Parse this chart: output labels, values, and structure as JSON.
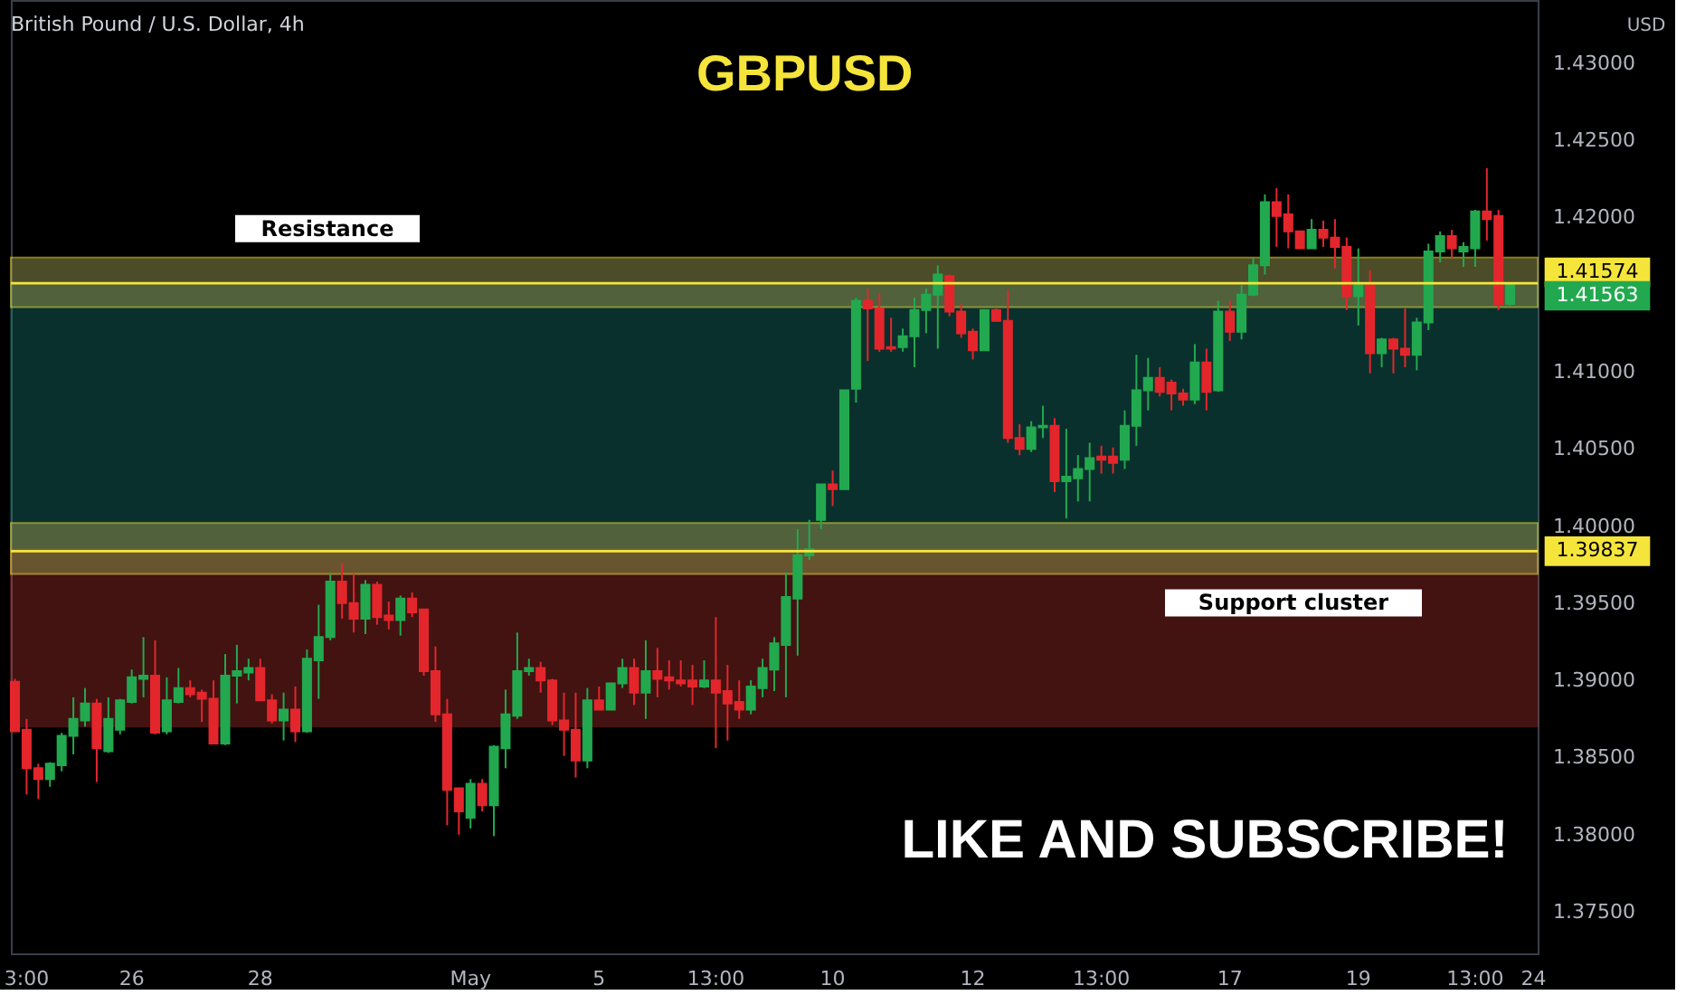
{
  "chart_data": {
    "type": "candlestick",
    "title": "GBPUSD",
    "subtitle": "British Pound / U.S. Dollar, 4h",
    "ylabel": "USD",
    "categories": [
      null,
      "3:00",
      null,
      null,
      null,
      null,
      null,
      null,
      null,
      null,
      "26",
      null,
      null,
      null,
      null,
      null,
      null,
      null,
      null,
      null,
      null,
      "28",
      null,
      null,
      null,
      null,
      null,
      null,
      null,
      null,
      null,
      null,
      null,
      null,
      null,
      null,
      null,
      null,
      null,
      "May",
      null,
      null,
      null,
      null,
      null,
      null,
      null,
      null,
      null,
      null,
      "5",
      null,
      null,
      null,
      null,
      null,
      null,
      null,
      null,
      null,
      "13:00",
      null,
      null,
      null,
      null,
      null,
      null,
      null,
      null,
      null,
      "10",
      null,
      null,
      null,
      null,
      null,
      null,
      null,
      null,
      null,
      null,
      null,
      "12",
      null,
      null,
      null,
      null,
      null,
      null,
      null,
      null,
      null,
      null,
      "13:00",
      null,
      null,
      null,
      null,
      null,
      null,
      null,
      null,
      null,
      null,
      "17",
      null,
      null,
      null,
      null,
      null,
      null,
      null,
      null,
      null,
      null,
      "19",
      null,
      null,
      null,
      null,
      null,
      null,
      null,
      null,
      null,
      "13:00",
      null,
      null,
      null,
      null,
      "24"
    ],
    "ohlc": [
      [
        1.3899,
        1.3901,
        1.3867,
        1.3867
      ],
      [
        1.3868,
        1.3875,
        1.3826,
        1.3843
      ],
      [
        1.3843,
        1.3846,
        1.3823,
        1.3836
      ],
      [
        1.3836,
        1.3847,
        1.3831,
        1.3846
      ],
      [
        1.3845,
        1.3866,
        1.3841,
        1.3864
      ],
      [
        1.3864,
        1.3889,
        1.3852,
        1.3875
      ],
      [
        1.3874,
        1.3895,
        1.387,
        1.3885
      ],
      [
        1.3885,
        1.3888,
        1.3834,
        1.3856
      ],
      [
        1.3854,
        1.3889,
        1.3853,
        1.3875
      ],
      [
        1.3868,
        1.3888,
        1.3865,
        1.3887
      ],
      [
        1.3886,
        1.3907,
        1.3885,
        1.3902
      ],
      [
        1.3901,
        1.3928,
        1.3889,
        1.3903
      ],
      [
        1.3903,
        1.3926,
        1.3865,
        1.3866
      ],
      [
        1.3867,
        1.3902,
        1.3865,
        1.3887
      ],
      [
        1.3886,
        1.3908,
        1.3885,
        1.3895
      ],
      [
        1.3895,
        1.39,
        1.3889,
        1.3891
      ],
      [
        1.3892,
        1.3894,
        1.3873,
        1.3888
      ],
      [
        1.3888,
        1.39,
        1.3859,
        1.3859
      ],
      [
        1.3859,
        1.3917,
        1.3858,
        1.3903
      ],
      [
        1.3903,
        1.3923,
        1.3885,
        1.3906
      ],
      [
        1.3905,
        1.3914,
        1.39,
        1.3908
      ],
      [
        1.3908,
        1.3914,
        1.3887,
        1.3887
      ],
      [
        1.3887,
        1.3891,
        1.3872,
        1.3874
      ],
      [
        1.3874,
        1.3892,
        1.3861,
        1.3881
      ],
      [
        1.3881,
        1.3896,
        1.386,
        1.3867
      ],
      [
        1.3867,
        1.392,
        1.3866,
        1.3914
      ],
      [
        1.3913,
        1.3949,
        1.3888,
        1.3928
      ],
      [
        1.3928,
        1.3969,
        1.3926,
        1.3964
      ],
      [
        1.3964,
        1.3976,
        1.394,
        1.395
      ],
      [
        1.395,
        1.3969,
        1.3931,
        1.394
      ],
      [
        1.394,
        1.3965,
        1.393,
        1.3962
      ],
      [
        1.3962,
        1.3964,
        1.3936,
        1.3941
      ],
      [
        1.3942,
        1.3951,
        1.3933,
        1.3939
      ],
      [
        1.3939,
        1.3955,
        1.3929,
        1.3953
      ],
      [
        1.3953,
        1.3957,
        1.3941,
        1.3944
      ],
      [
        1.3946,
        1.3946,
        1.3903,
        1.3906
      ],
      [
        1.3906,
        1.3922,
        1.3873,
        1.3878
      ],
      [
        1.3878,
        1.3888,
        1.3806,
        1.3829
      ],
      [
        1.383,
        1.383,
        1.38,
        1.3815
      ],
      [
        1.3811,
        1.3836,
        1.3804,
        1.3833
      ],
      [
        1.3833,
        1.3836,
        1.3815,
        1.3819
      ],
      [
        1.3819,
        1.3858,
        1.3799,
        1.3857
      ],
      [
        1.3856,
        1.3894,
        1.3843,
        1.3878
      ],
      [
        1.3877,
        1.3931,
        1.3875,
        1.3906
      ],
      [
        1.3906,
        1.3914,
        1.3903,
        1.3908
      ],
      [
        1.3908,
        1.3912,
        1.3892,
        1.39
      ],
      [
        1.39,
        1.3901,
        1.3871,
        1.3874
      ],
      [
        1.3874,
        1.3892,
        1.3851,
        1.3868
      ],
      [
        1.3868,
        1.3892,
        1.3837,
        1.3848
      ],
      [
        1.3848,
        1.3895,
        1.3843,
        1.3887
      ],
      [
        1.3887,
        1.3896,
        1.3881,
        1.3881
      ],
      [
        1.3881,
        1.3898,
        1.3881,
        1.3898
      ],
      [
        1.3898,
        1.3914,
        1.3895,
        1.3908
      ],
      [
        1.3908,
        1.3914,
        1.3884,
        1.3892
      ],
      [
        1.3892,
        1.3926,
        1.3875,
        1.3906
      ],
      [
        1.3906,
        1.3921,
        1.3889,
        1.3901
      ],
      [
        1.3902,
        1.3913,
        1.3894,
        1.39
      ],
      [
        1.39,
        1.3913,
        1.3896,
        1.3898
      ],
      [
        1.39,
        1.391,
        1.3884,
        1.3896
      ],
      [
        1.3896,
        1.3913,
        1.3895,
        1.39
      ],
      [
        1.39,
        1.3941,
        1.3856,
        1.3892
      ],
      [
        1.3893,
        1.391,
        1.3861,
        1.3885
      ],
      [
        1.3886,
        1.39,
        1.3875,
        1.3881
      ],
      [
        1.3881,
        1.39,
        1.3878,
        1.3896
      ],
      [
        1.3895,
        1.3914,
        1.3889,
        1.3908
      ],
      [
        1.3907,
        1.3928,
        1.3893,
        1.3924
      ],
      [
        1.3923,
        1.397,
        1.3889,
        1.3954
      ],
      [
        1.3953,
        1.3998,
        1.3916,
        1.3981
      ],
      [
        1.3981,
        1.4004,
        1.3978,
        1.3985
      ],
      [
        1.4004,
        1.4027,
        1.3998,
        1.4027
      ],
      [
        1.4027,
        1.4036,
        1.4013,
        1.4024
      ],
      [
        1.4024,
        1.4088,
        1.4024,
        1.4088
      ],
      [
        1.4089,
        1.4148,
        1.408,
        1.4146
      ],
      [
        1.4146,
        1.4154,
        1.4107,
        1.4141
      ],
      [
        1.4141,
        1.4151,
        1.4113,
        1.4115
      ],
      [
        1.4116,
        1.4135,
        1.4113,
        1.4115
      ],
      [
        1.4116,
        1.4128,
        1.4113,
        1.4123
      ],
      [
        1.4123,
        1.4148,
        1.4103,
        1.414
      ],
      [
        1.414,
        1.4154,
        1.4125,
        1.415
      ],
      [
        1.415,
        1.4169,
        1.4115,
        1.4163
      ],
      [
        1.4162,
        1.4163,
        1.4136,
        1.4139
      ],
      [
        1.4139,
        1.4144,
        1.4122,
        1.4125
      ],
      [
        1.4126,
        1.4128,
        1.4108,
        1.4114
      ],
      [
        1.4114,
        1.414,
        1.4114,
        1.414
      ],
      [
        1.414,
        1.4141,
        1.4133,
        1.4133
      ],
      [
        1.4133,
        1.4153,
        1.4054,
        1.4057
      ],
      [
        1.4057,
        1.4066,
        1.4046,
        1.405
      ],
      [
        1.405,
        1.4068,
        1.4048,
        1.4064
      ],
      [
        1.4064,
        1.4078,
        1.4057,
        1.4065
      ],
      [
        1.4065,
        1.407,
        1.4022,
        1.4029
      ],
      [
        1.4029,
        1.4063,
        1.4005,
        1.4032
      ],
      [
        1.4031,
        1.4046,
        1.4016,
        1.4037
      ],
      [
        1.4037,
        1.4054,
        1.4016,
        1.4044
      ],
      [
        1.4045,
        1.4052,
        1.4034,
        1.4043
      ],
      [
        1.4045,
        1.4051,
        1.4034,
        1.4041
      ],
      [
        1.4043,
        1.4075,
        1.4037,
        1.4065
      ],
      [
        1.4065,
        1.4111,
        1.4052,
        1.4088
      ],
      [
        1.4088,
        1.4109,
        1.4075,
        1.4096
      ],
      [
        1.4096,
        1.4103,
        1.4084,
        1.4087
      ],
      [
        1.4093,
        1.4095,
        1.4075,
        1.4086
      ],
      [
        1.4086,
        1.4089,
        1.4078,
        1.4082
      ],
      [
        1.4082,
        1.4118,
        1.4079,
        1.4106
      ],
      [
        1.4106,
        1.4115,
        1.4075,
        1.4087
      ],
      [
        1.4088,
        1.4146,
        1.4087,
        1.4139
      ],
      [
        1.4139,
        1.4146,
        1.412,
        1.4126
      ],
      [
        1.4126,
        1.4156,
        1.4121,
        1.415
      ],
      [
        1.415,
        1.4174,
        1.4149,
        1.4169
      ],
      [
        1.4169,
        1.4215,
        1.4163,
        1.421
      ],
      [
        1.421,
        1.4219,
        1.4181,
        1.4201
      ],
      [
        1.4202,
        1.4215,
        1.418,
        1.4191
      ],
      [
        1.4191,
        1.4191,
        1.418,
        1.418
      ],
      [
        1.418,
        1.4199,
        1.418,
        1.4192
      ],
      [
        1.4192,
        1.4198,
        1.4181,
        1.4187
      ],
      [
        1.4187,
        1.4199,
        1.4167,
        1.4181
      ],
      [
        1.4181,
        1.4187,
        1.414,
        1.4149
      ],
      [
        1.4149,
        1.418,
        1.413,
        1.4156
      ],
      [
        1.4156,
        1.4166,
        1.4099,
        1.4112
      ],
      [
        1.4112,
        1.4122,
        1.4103,
        1.4121
      ],
      [
        1.4121,
        1.4122,
        1.4099,
        1.4115
      ],
      [
        1.4115,
        1.4141,
        1.4103,
        1.4111
      ],
      [
        1.4111,
        1.4135,
        1.4101,
        1.4132
      ],
      [
        1.4132,
        1.4183,
        1.4127,
        1.4178
      ],
      [
        1.4178,
        1.4191,
        1.4171,
        1.4188
      ],
      [
        1.4188,
        1.4192,
        1.4174,
        1.418
      ],
      [
        1.4178,
        1.4184,
        1.4168,
        1.4181
      ],
      [
        1.418,
        1.4205,
        1.4168,
        1.4204
      ],
      [
        1.4204,
        1.4232,
        1.4185,
        1.4199
      ],
      [
        1.4201,
        1.4205,
        1.414,
        1.4144
      ],
      [
        1.4144,
        1.4157,
        1.4143,
        1.41563
      ],
      null,
      null
    ],
    "colors": [
      "#e3262c",
      "#e3262c",
      "#e3262c",
      "#22a94f",
      "#22a94f",
      "#22a94f",
      "#22a94f",
      "#e3262c",
      "#22a94f",
      "#22a94f",
      "#22a94f",
      "#22a94f",
      "#e3262c",
      "#22a94f",
      "#22a94f",
      "#e3262c",
      "#e3262c",
      "#e3262c",
      "#22a94f",
      "#22a94f",
      "#22a94f",
      "#e3262c",
      "#e3262c",
      "#22a94f",
      "#e3262c",
      "#22a94f",
      "#22a94f",
      "#22a94f",
      "#e3262c",
      "#e3262c",
      "#22a94f",
      "#e3262c",
      "#e3262c",
      "#22a94f",
      "#e3262c",
      "#e3262c",
      "#e3262c",
      "#e3262c",
      "#e3262c",
      "#22a94f",
      "#e3262c",
      "#22a94f",
      "#22a94f",
      "#22a94f",
      "#22a94f",
      "#e3262c",
      "#e3262c",
      "#e3262c",
      "#e3262c",
      "#22a94f",
      "#e3262c",
      "#22a94f",
      "#22a94f",
      "#e3262c",
      "#22a94f",
      "#e3262c",
      "#e3262c",
      "#e3262c",
      "#e3262c",
      "#22a94f",
      "#e3262c",
      "#e3262c",
      "#e3262c",
      "#22a94f",
      "#22a94f",
      "#22a94f",
      "#22a94f",
      "#22a94f",
      "#22a94f",
      "#22a94f",
      "#e3262c",
      "#22a94f",
      "#22a94f",
      "#e3262c",
      "#e3262c",
      "#e3262c",
      "#22a94f",
      "#22a94f",
      "#22a94f",
      "#22a94f",
      "#e3262c",
      "#e3262c",
      "#e3262c",
      "#22a94f",
      "#e3262c",
      "#e3262c",
      "#e3262c",
      "#22a94f",
      "#22a94f",
      "#e3262c",
      "#22a94f",
      "#22a94f",
      "#22a94f",
      "#e3262c",
      "#e3262c",
      "#22a94f",
      "#22a94f",
      "#22a94f",
      "#e3262c",
      "#e3262c",
      "#e3262c",
      "#22a94f",
      "#e3262c",
      "#22a94f",
      "#e3262c",
      "#22a94f",
      "#22a94f",
      "#22a94f",
      "#e3262c",
      "#e3262c",
      "#e3262c",
      "#22a94f",
      "#e3262c",
      "#e3262c",
      "#e3262c",
      "#22a94f",
      "#e3262c",
      "#22a94f",
      "#e3262c",
      "#e3262c",
      "#22a94f",
      "#22a94f",
      "#22a94f",
      "#e3262c",
      "#22a94f",
      "#22a94f",
      "#e3262c",
      "#e3262c",
      "#22a94f",
      null,
      null
    ],
    "ylim": [
      1.3723,
      1.4341
    ],
    "yticks": [
      {
        "value": 1.375,
        "label": "1.37500"
      },
      {
        "value": 1.38,
        "label": "1.38000"
      },
      {
        "value": 1.385,
        "label": "1.38500"
      },
      {
        "value": 1.39,
        "label": "1.39000"
      },
      {
        "value": 1.395,
        "label": "1.39500"
      },
      {
        "value": 1.4,
        "label": "1.40000"
      },
      {
        "value": 1.405,
        "label": "1.40500"
      },
      {
        "value": 1.41,
        "label": "1.41000"
      },
      {
        "value": 1.42,
        "label": "1.42000"
      },
      {
        "value": 1.425,
        "label": "1.42500"
      },
      {
        "value": 1.43,
        "label": "1.43000"
      }
    ],
    "grid": false,
    "bands": [
      {
        "axis": "y",
        "from": 1.3985,
        "to": 1.4157,
        "color": "#1f9e92"
      },
      {
        "axis": "y",
        "from": 1.387,
        "to": 1.3985,
        "color": "#d9403a"
      },
      {
        "axis": "y",
        "from": 1.4142,
        "to": 1.4174,
        "color": "#8a8a4a",
        "label": "Resistance"
      },
      {
        "axis": "y",
        "from": 1.3969,
        "to": 1.4002,
        "color": "#8a8a4a",
        "label": "Support cluster"
      }
    ],
    "ref_lines": [
      {
        "axis": "y",
        "value": 1.41574,
        "label": "1.41574",
        "color": "#f5e53b"
      },
      {
        "axis": "y",
        "value": 1.39837,
        "label": "1.39837",
        "color": "#f5e53b"
      }
    ],
    "annotations": [
      "1.41563",
      "LIKE AND SUBSCRIBE!"
    ]
  }
}
